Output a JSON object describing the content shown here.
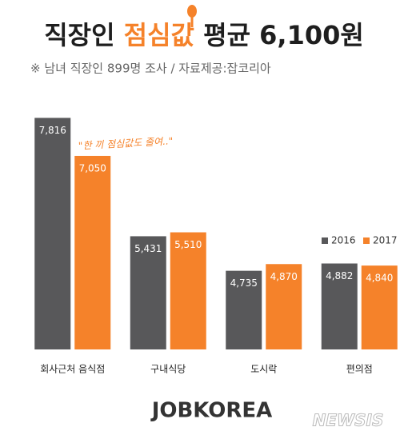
{
  "chart_data": {
    "type": "bar",
    "title": [
      "직장인 ",
      "점심값",
      " 평균 6,100원"
    ],
    "subtitle": "※ 남녀 직장인 899명  조사  / 자료제공:잡코리아",
    "annotation": "\"한 끼 점심값도 줄여..\"",
    "brand": "JOBKOREA",
    "watermark": "NEWSIS",
    "categories": [
      "회사근처 음식점",
      "구내식당",
      "도시락",
      "편의점"
    ],
    "series": [
      {
        "name": "2016",
        "color": "#58585a",
        "values": [
          7816,
          5431,
          4735,
          4882
        ],
        "value_labels": [
          "7,816",
          "5,431",
          "4,735",
          "4,882"
        ]
      },
      {
        "name": "2017",
        "color": "#f5822a",
        "values": [
          7050,
          5510,
          4870,
          4840
        ],
        "value_labels": [
          "7,050",
          "5,510",
          "4,870",
          "4,840"
        ]
      }
    ],
    "ylim": [
      3150,
      8000
    ],
    "highlight_color": "#f5822a"
  }
}
